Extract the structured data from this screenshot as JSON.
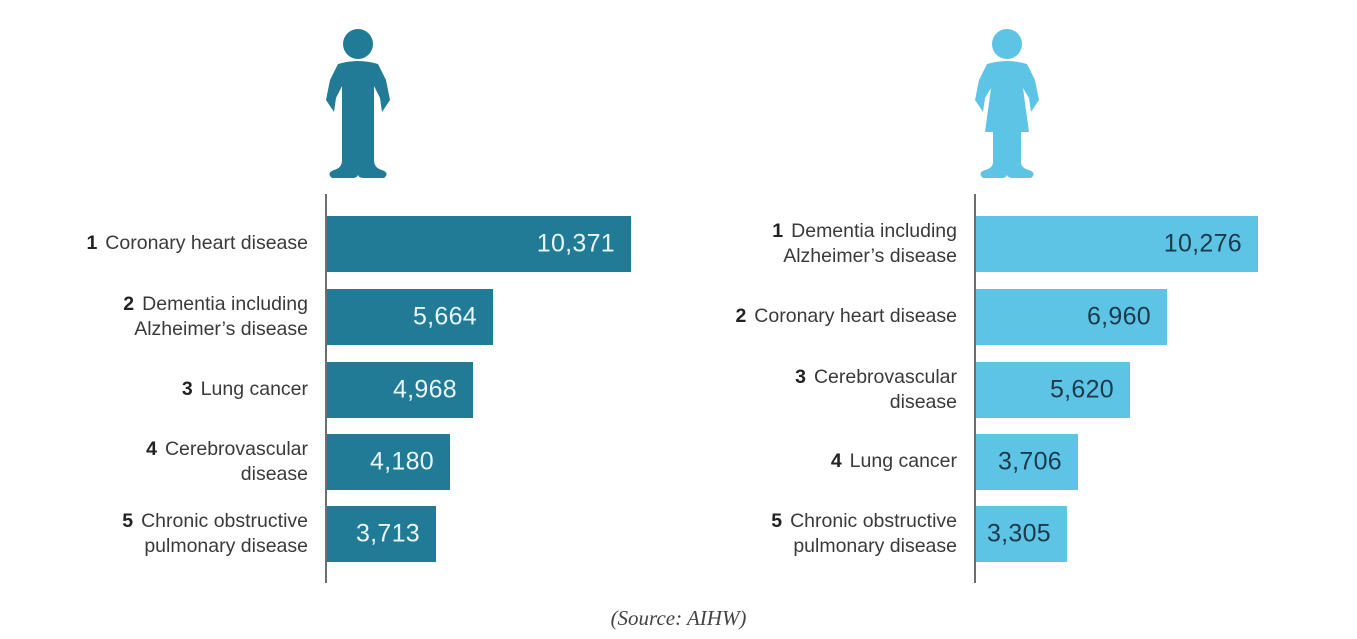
{
  "colors": {
    "male": "#217a96",
    "female": "#5ec4e6",
    "male_value_text": "#e8f6fb",
    "female_value_text": "#1c3a4a"
  },
  "panels": [
    {
      "id": "male",
      "icon": "man-icon",
      "items": [
        {
          "rank": "1",
          "line1": "Coronary heart disease",
          "line2": "",
          "value": 10371,
          "value_label": "10,371"
        },
        {
          "rank": "2",
          "line1": "Dementia including",
          "line2": "Alzheimer’s disease",
          "value": 5664,
          "value_label": "5,664"
        },
        {
          "rank": "3",
          "line1": "Lung cancer",
          "line2": "",
          "value": 4968,
          "value_label": "4,968"
        },
        {
          "rank": "4",
          "line1": "Cerebrovascular",
          "line2": "disease",
          "value": 4180,
          "value_label": "4,180"
        },
        {
          "rank": "5",
          "line1": "Chronic obstructive",
          "line2": "pulmonary disease",
          "value": 3713,
          "value_label": "3,713"
        }
      ]
    },
    {
      "id": "female",
      "icon": "woman-icon",
      "items": [
        {
          "rank": "1",
          "line1": "Dementia including",
          "line2": "Alzheimer’s disease",
          "value": 10276,
          "value_label": "10,276"
        },
        {
          "rank": "2",
          "line1": "Coronary heart disease",
          "line2": "",
          "value": 6960,
          "value_label": "6,960"
        },
        {
          "rank": "3",
          "line1": "Cerebrovascular",
          "line2": "disease",
          "value": 5620,
          "value_label": "5,620"
        },
        {
          "rank": "4",
          "line1": "Lung cancer",
          "line2": "",
          "value": 3706,
          "value_label": "3,706"
        },
        {
          "rank": "5",
          "line1": "Chronic obstructive",
          "line2": "pulmonary disease",
          "value": 3305,
          "value_label": "3,305"
        }
      ]
    }
  ],
  "source": "(Source: AIHW)",
  "chart_data": [
    {
      "type": "bar",
      "orientation": "horizontal",
      "title": "Males - leading causes of death",
      "categories": [
        "Coronary heart disease",
        "Dementia including Alzheimer’s disease",
        "Lung cancer",
        "Cerebrovascular disease",
        "Chronic obstructive pulmonary disease"
      ],
      "values": [
        10371,
        5664,
        4968,
        4180,
        3713
      ],
      "xlabel": "",
      "ylabel": "",
      "color": "#217a96",
      "grid": false,
      "legend": "man icon",
      "source": "(Source: AIHW)"
    },
    {
      "type": "bar",
      "orientation": "horizontal",
      "title": "Females - leading causes of death",
      "categories": [
        "Dementia including Alzheimer’s disease",
        "Coronary heart disease",
        "Cerebrovascular disease",
        "Lung cancer",
        "Chronic obstructive pulmonary disease"
      ],
      "values": [
        10276,
        6960,
        5620,
        3706,
        3305
      ],
      "xlabel": "",
      "ylabel": "",
      "color": "#5ec4e6",
      "grid": false,
      "legend": "woman icon",
      "source": "(Source: AIHW)"
    }
  ]
}
